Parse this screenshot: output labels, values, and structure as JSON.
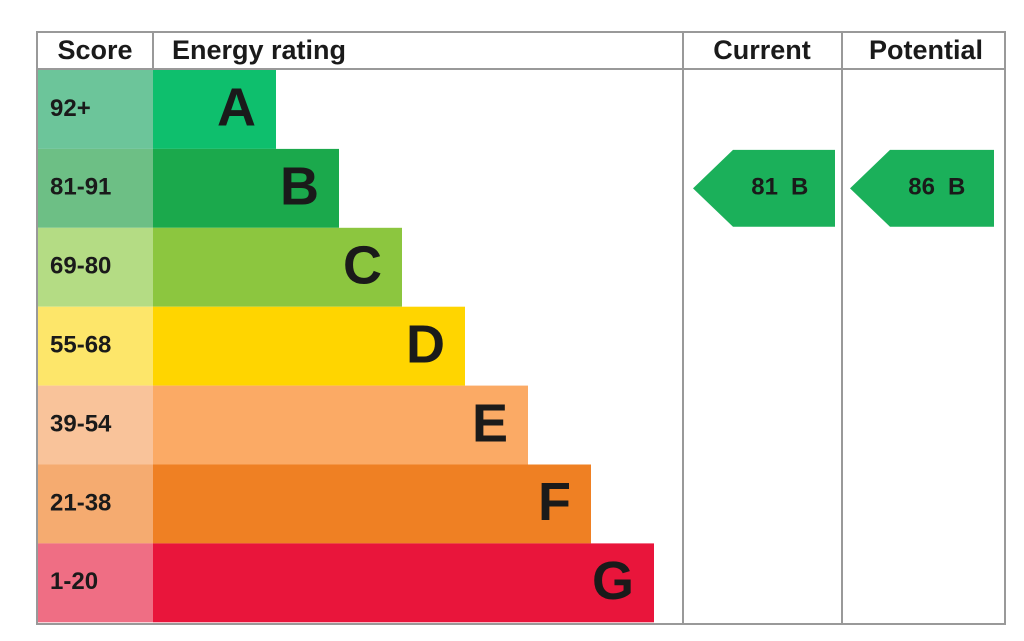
{
  "headers": {
    "score": "Score",
    "rating": "Energy rating",
    "current": "Current",
    "potential": "Potential"
  },
  "bands": [
    {
      "score": "92+",
      "letter": "A",
      "color": "#0ebf6d",
      "light": "#6cc59a"
    },
    {
      "score": "81-91",
      "letter": "B",
      "color": "#1ba94c",
      "light": "#6dbf85"
    },
    {
      "score": "69-80",
      "letter": "C",
      "color": "#8cc63f",
      "light": "#b4dc84"
    },
    {
      "score": "55-68",
      "letter": "D",
      "color": "#ffd500",
      "light": "#fde66a"
    },
    {
      "score": "39-54",
      "letter": "E",
      "color": "#fbaa65",
      "light": "#f9c39a"
    },
    {
      "score": "21-38",
      "letter": "F",
      "color": "#ef8023",
      "light": "#f5ab70"
    },
    {
      "score": "1-20",
      "letter": "G",
      "color": "#e9153b",
      "light": "#ef6e84"
    }
  ],
  "current": {
    "value": 81,
    "letter": "B",
    "color": "#1bb05a"
  },
  "potential": {
    "value": 86,
    "letter": "B",
    "color": "#1bb05a"
  }
}
